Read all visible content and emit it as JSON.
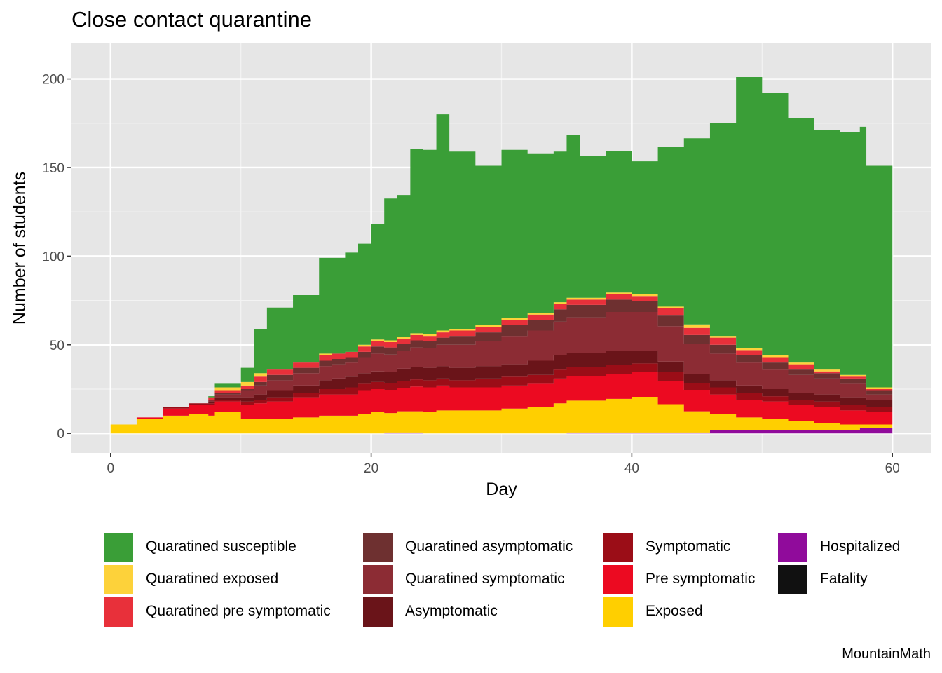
{
  "title": "Close contact quarantine",
  "caption": "MountainMath",
  "chart_data": {
    "type": "area",
    "stacked": true,
    "title": "Close contact quarantine",
    "xlabel": "Day",
    "ylabel": "Number of students",
    "xlim": [
      -3,
      63
    ],
    "ylim": [
      -11,
      220
    ],
    "x_ticks": [
      0,
      20,
      40,
      60
    ],
    "y_ticks": [
      0,
      50,
      100,
      150,
      200
    ],
    "x_tick_labels": [
      "0",
      "20",
      "40",
      "60"
    ],
    "y_tick_labels": [
      "0",
      "50",
      "100",
      "150",
      "200"
    ],
    "grid": true,
    "legend_position": "bottom",
    "x": [
      0,
      1,
      2,
      4,
      6,
      7.5,
      8,
      10,
      11,
      12,
      14,
      16,
      17,
      18,
      19,
      20,
      21,
      22,
      23,
      24,
      25,
      26,
      28,
      30,
      32,
      34,
      35,
      36,
      38,
      40,
      42,
      44,
      46,
      48,
      50,
      52,
      54,
      56,
      57.5,
      58,
      60
    ],
    "stack_order": [
      "Hospitalized",
      "Exposed",
      "Pre symptomatic",
      "Symptomatic",
      "Asymptomatic",
      "Quaratined symptomatic",
      "Quaratined asymptomatic",
      "Quaratined pre symptomatic",
      "Quaratined exposed",
      "Quaratined susceptible"
    ],
    "series": [
      {
        "name": "Quaratined susceptible",
        "color": "#3a9e37",
        "values": [
          0,
          0,
          0,
          0,
          0,
          1,
          2,
          8,
          25,
          35,
          38,
          54,
          54,
          56,
          57,
          65,
          80,
          80,
          104,
          104,
          122,
          100,
          90,
          95,
          90,
          85,
          92,
          80,
          80,
          75,
          90,
          105,
          120,
          153,
          148,
          138,
          135,
          137,
          140,
          125,
          103
        ]
      },
      {
        "name": "Quaratined exposed",
        "color": "#fdd23a",
        "values": [
          0,
          0,
          0,
          0,
          0,
          0,
          2,
          2,
          2,
          0,
          0,
          1,
          0,
          0,
          1,
          1,
          1,
          1,
          1,
          1,
          1,
          1,
          1,
          1,
          1,
          1,
          1,
          1,
          1,
          1,
          1,
          2,
          1,
          1,
          1,
          1,
          1,
          1,
          1,
          1,
          1
        ]
      },
      {
        "name": "Quaratined pre symptomatic",
        "color": "#e8303a",
        "values": [
          0,
          0,
          0,
          0,
          0,
          1,
          1,
          2,
          3,
          3,
          3,
          3,
          3,
          3,
          3,
          3,
          3,
          3,
          3,
          3,
          3,
          3,
          3,
          3,
          3,
          3,
          3,
          3,
          3,
          3,
          4,
          4,
          4,
          3,
          3,
          3,
          1,
          1,
          1,
          1,
          1
        ]
      },
      {
        "name": "Quaratined asymptomatic",
        "color": "#6e3030",
        "values": [
          0,
          0,
          0,
          0,
          0,
          0,
          1,
          1,
          2,
          3,
          3,
          3,
          3,
          3,
          3,
          4,
          4,
          4,
          4,
          4,
          4,
          5,
          5,
          6,
          6,
          7,
          7,
          7,
          7,
          6,
          6,
          5,
          5,
          4,
          4,
          3,
          3,
          3,
          3,
          2,
          2
        ]
      },
      {
        "name": "Quaratined symptomatic",
        "color": "#8c2c34",
        "values": [
          0,
          0,
          0,
          0,
          0,
          1,
          2,
          4,
          5,
          6,
          7,
          8,
          8,
          8,
          9,
          10,
          10,
          10,
          11,
          11,
          12,
          13,
          14,
          16,
          17,
          19,
          20,
          20,
          22,
          22,
          20,
          17,
          15,
          13,
          11,
          10,
          9,
          8,
          8,
          3,
          3
        ]
      },
      {
        "name": "Asymptomatic",
        "color": "#6a1419",
        "values": [
          0,
          0,
          0,
          0,
          0,
          1,
          1,
          2,
          3,
          4,
          4,
          5,
          6,
          6,
          6,
          6,
          6,
          7,
          7,
          7,
          7,
          7,
          7,
          7,
          8,
          8,
          8,
          8,
          8,
          7,
          6,
          5,
          4,
          4,
          4,
          4,
          4,
          4,
          4,
          4,
          3
        ]
      },
      {
        "name": "Symptomatic",
        "color": "#9b0d17",
        "values": [
          0,
          0,
          0,
          1,
          1,
          1,
          1,
          2,
          2,
          2,
          3,
          3,
          3,
          4,
          4,
          4,
          4,
          4,
          4,
          4,
          4,
          4,
          5,
          5,
          5,
          5,
          5,
          5,
          5,
          5,
          5,
          4,
          4,
          4,
          3,
          3,
          3,
          3,
          3,
          3,
          2
        ]
      },
      {
        "name": "Pre symptomatic",
        "color": "#ec0a21",
        "values": [
          0,
          0,
          1,
          4,
          5,
          6,
          6,
          8,
          9,
          10,
          11,
          12,
          12,
          12,
          13,
          13,
          13,
          13,
          14,
          14,
          14,
          13,
          13,
          13,
          13,
          14,
          14,
          14,
          14,
          14,
          13,
          12,
          11,
          10,
          10,
          9,
          9,
          8,
          8,
          7,
          5
        ]
      },
      {
        "name": "Exposed",
        "color": "#ffcf00",
        "values": [
          5,
          5,
          8,
          10,
          11,
          10,
          12,
          8,
          8,
          8,
          9,
          10,
          10,
          10,
          11,
          12,
          11,
          12,
          12,
          12,
          13,
          13,
          13,
          14,
          15,
          17,
          18,
          18,
          19,
          20,
          16,
          12,
          9,
          7,
          6,
          5,
          4,
          3,
          2,
          2,
          2
        ]
      },
      {
        "name": "Hospitalized",
        "color": "#900b9b",
        "values": [
          0,
          0,
          0,
          0,
          0,
          0,
          0,
          0,
          0,
          0,
          0,
          0,
          0,
          0,
          0,
          0,
          0.5,
          0.5,
          0.5,
          0,
          0,
          0,
          0,
          0,
          0,
          0,
          0.5,
          0.5,
          0.5,
          0.5,
          0.5,
          0.5,
          2,
          2,
          2,
          2,
          2,
          2,
          3,
          3,
          3
        ]
      },
      {
        "name": "Fatality",
        "color": "#111111",
        "values": [
          0,
          0,
          0,
          0,
          0,
          0,
          0,
          0,
          0,
          0,
          0,
          0,
          0,
          0,
          0,
          0,
          0,
          0,
          0,
          0,
          0,
          0,
          0,
          0,
          0,
          0,
          0,
          0,
          0,
          0,
          0,
          0,
          0,
          0,
          0,
          0,
          0,
          0,
          0,
          0,
          0
        ]
      }
    ],
    "legend_entries": [
      [
        "Quaratined susceptible",
        "Quaratined exposed",
        "Quaratined pre symptomatic"
      ],
      [
        "Quaratined asymptomatic",
        "Quaratined symptomatic",
        "Asymptomatic"
      ],
      [
        "Symptomatic",
        "Pre symptomatic",
        "Exposed"
      ],
      [
        "Hospitalized",
        "Fatality"
      ]
    ]
  }
}
